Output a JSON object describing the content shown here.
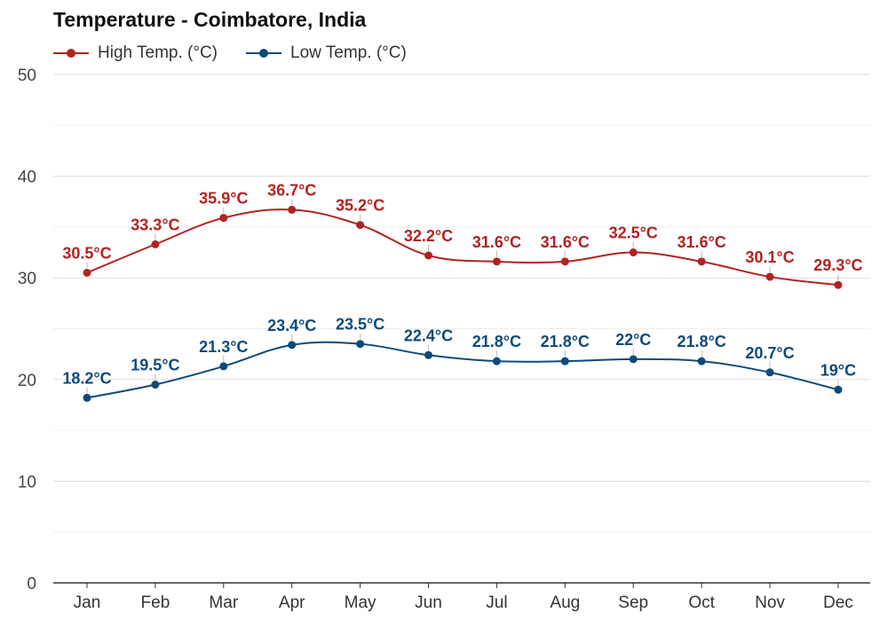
{
  "chart_data": {
    "type": "line",
    "title": "Temperature - Coimbatore, India",
    "categories": [
      "Jan",
      "Feb",
      "Mar",
      "Apr",
      "May",
      "Jun",
      "Jul",
      "Aug",
      "Sep",
      "Oct",
      "Nov",
      "Dec"
    ],
    "series": [
      {
        "name": "High Temp. (°C)",
        "color": "#b22222",
        "values": [
          30.5,
          33.3,
          35.9,
          36.7,
          35.2,
          32.2,
          31.6,
          31.6,
          32.5,
          31.6,
          30.1,
          29.3
        ],
        "labels": [
          "30.5°C",
          "33.3°C",
          "35.9°C",
          "36.7°C",
          "35.2°C",
          "32.2°C",
          "31.6°C",
          "31.6°C",
          "32.5°C",
          "31.6°C",
          "30.1°C",
          "29.3°C"
        ]
      },
      {
        "name": "Low Temp. (°C)",
        "color": "#0d4a7a",
        "values": [
          18.2,
          19.5,
          21.3,
          23.4,
          23.5,
          22.4,
          21.8,
          21.8,
          22,
          21.8,
          20.7,
          19
        ],
        "labels": [
          "18.2°C",
          "19.5°C",
          "21.3°C",
          "23.4°C",
          "23.5°C",
          "22.4°C",
          "21.8°C",
          "21.8°C",
          "22°C",
          "21.8°C",
          "20.7°C",
          "19°C"
        ]
      }
    ],
    "ylim": [
      0,
      50
    ],
    "yticks": [
      0,
      10,
      20,
      30,
      40,
      50
    ],
    "grid": true,
    "legend_position": "top-left"
  }
}
